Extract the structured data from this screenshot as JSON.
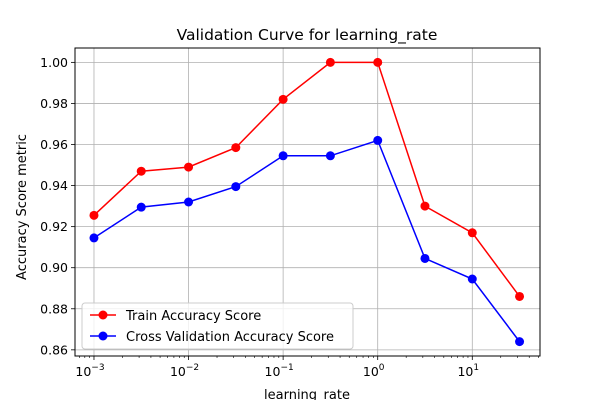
{
  "chart_data": {
    "type": "line",
    "title": "Validation Curve for learning_rate",
    "xlabel": "learning_rate",
    "ylabel": "Accuracy Score metric",
    "xscale": "log",
    "xlim": [
      0.00063,
      52
    ],
    "ylim": [
      0.857,
      1.007
    ],
    "grid": true,
    "legend_position": "lower-left",
    "x_ticks": [
      {
        "value": 0.001,
        "base": "10",
        "exp": "−3"
      },
      {
        "value": 0.01,
        "base": "10",
        "exp": "−2"
      },
      {
        "value": 0.1,
        "base": "10",
        "exp": "−1"
      },
      {
        "value": 1,
        "base": "10",
        "exp": "0"
      },
      {
        "value": 10,
        "base": "10",
        "exp": "1"
      }
    ],
    "y_ticks": [
      {
        "value": 0.86,
        "label": "0.86"
      },
      {
        "value": 0.88,
        "label": "0.88"
      },
      {
        "value": 0.9,
        "label": "0.90"
      },
      {
        "value": 0.92,
        "label": "0.92"
      },
      {
        "value": 0.94,
        "label": "0.94"
      },
      {
        "value": 0.96,
        "label": "0.96"
      },
      {
        "value": 0.98,
        "label": "0.98"
      },
      {
        "value": 1.0,
        "label": "1.00"
      }
    ],
    "x": [
      0.001,
      0.00316,
      0.01,
      0.0316,
      0.1,
      0.316,
      1,
      3.16,
      10,
      31.6
    ],
    "series": [
      {
        "name": "Train Accuracy Score",
        "color": "#ff0000",
        "values": [
          0.9255,
          0.947,
          0.949,
          0.9585,
          0.982,
          1.0,
          1.0,
          0.93,
          0.917,
          0.886
        ]
      },
      {
        "name": "Cross Validation Accuracy Score",
        "color": "#0000ff",
        "values": [
          0.9145,
          0.9295,
          0.932,
          0.9395,
          0.9545,
          0.9545,
          0.962,
          0.9045,
          0.8945,
          0.864
        ]
      }
    ]
  }
}
